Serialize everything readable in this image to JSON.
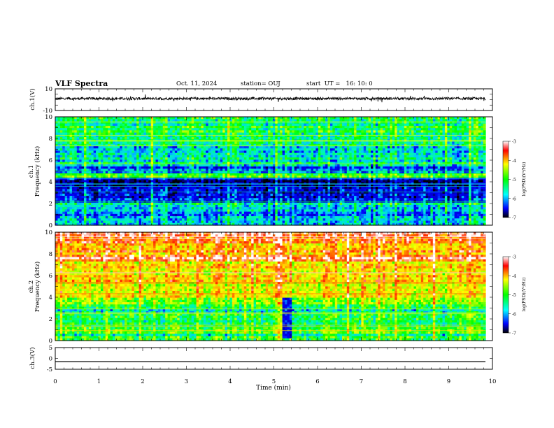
{
  "header": {
    "title": "VLF Spectra",
    "date": "Oct. 11, 2024",
    "station": "station= OUJ",
    "start": "start  UT =   16: 10: 0"
  },
  "chart_data": [
    {
      "type": "line",
      "panel": "ch1-waveform",
      "ylabel": "ch.1(V)",
      "ylim": [
        -10,
        10
      ],
      "yticks": [
        "10",
        "-10"
      ],
      "baseline": 1.0,
      "noise_amplitude": 1.2,
      "color": "#000000"
    },
    {
      "type": "heatmap",
      "panel": "ch1-spectrogram",
      "ylabel": "ch.1",
      "ylabel2": "Frequency (kHz)",
      "ylim": [
        0,
        10
      ],
      "yticks": [
        "0",
        "2",
        "4",
        "6",
        "8",
        "10"
      ],
      "colorbar": {
        "label": "log(PSD)(V²/Hz)",
        "range": [
          -7,
          -3
        ],
        "ticks": [
          "-3",
          "-4",
          "-5",
          "-6",
          "-7"
        ]
      },
      "bands": [
        {
          "from": 0,
          "to": 0.8,
          "level": -5.6
        },
        {
          "from": 0.8,
          "to": 1.5,
          "level": -5.9
        },
        {
          "from": 1.5,
          "to": 2.0,
          "level": -5.5
        },
        {
          "from": 2.0,
          "to": 2.6,
          "level": -6.1
        },
        {
          "from": 2.6,
          "to": 3.4,
          "level": -6.4
        },
        {
          "from": 3.4,
          "to": 4.3,
          "level": -6.6
        },
        {
          "from": 4.3,
          "to": 4.7,
          "level": -4.9
        },
        {
          "from": 4.7,
          "to": 5.4,
          "level": -5.9
        },
        {
          "from": 5.4,
          "to": 7.2,
          "level": -5.4
        },
        {
          "from": 7.2,
          "to": 10.0,
          "level": -5.1
        }
      ]
    },
    {
      "type": "heatmap",
      "panel": "ch2-spectrogram",
      "ylabel": "ch.2",
      "ylabel2": "Frequency (kHz)",
      "ylim": [
        0,
        10
      ],
      "yticks": [
        "0",
        "2",
        "4",
        "6",
        "8",
        "10"
      ],
      "colorbar": {
        "label": "log(PSD)(V²/Hz)",
        "range": [
          -7,
          -3
        ],
        "ticks": [
          "-3",
          "-4",
          "-5",
          "-6",
          "-7"
        ]
      },
      "bands": [
        {
          "from": 0,
          "to": 0.6,
          "level": -5.2
        },
        {
          "from": 0.6,
          "to": 1.5,
          "level": -4.9
        },
        {
          "from": 1.5,
          "to": 2.5,
          "level": -5.1
        },
        {
          "from": 2.5,
          "to": 3.4,
          "level": -5.3
        },
        {
          "from": 3.4,
          "to": 4.0,
          "level": -4.5
        },
        {
          "from": 4.0,
          "to": 5.5,
          "level": -4.4
        },
        {
          "from": 5.5,
          "to": 7.2,
          "level": -4.0
        },
        {
          "from": 7.2,
          "to": 8.0,
          "level": -3.4
        },
        {
          "from": 8.0,
          "to": 9.0,
          "level": -3.8
        },
        {
          "from": 9.0,
          "to": 10.0,
          "level": -3.3
        }
      ],
      "dropout": {
        "t_from": 5.18,
        "t_to": 5.4,
        "f_from": 0.3,
        "f_to": 4.0,
        "level": -6.3
      }
    },
    {
      "type": "line",
      "panel": "ch3-waveform",
      "ylabel": "ch.3(V)",
      "ylim": [
        -5,
        5
      ],
      "yticks": [
        "5",
        "0",
        "-5"
      ],
      "values": [
        -1.5,
        -1.5
      ],
      "color": "#000000"
    }
  ],
  "xaxis": {
    "xlabel": "Time (min)",
    "xlim": [
      0,
      10
    ],
    "xticks": [
      "0",
      "1",
      "2",
      "3",
      "4",
      "5",
      "6",
      "7",
      "8",
      "9",
      "10"
    ],
    "data_end": 9.84
  }
}
